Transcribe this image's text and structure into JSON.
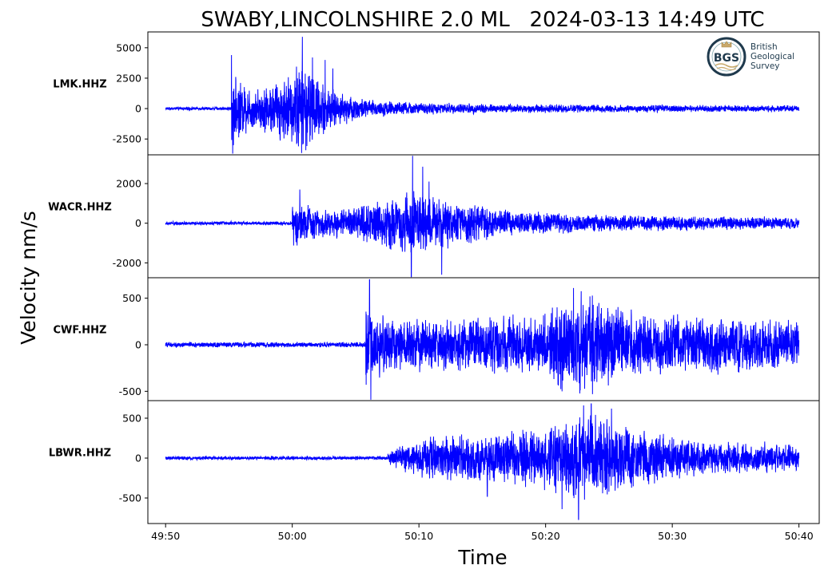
{
  "chart_data": {
    "type": "line",
    "title": "SWABY,LINCOLNSHIRE 2.0 ML   2024-03-13 14:49 UTC",
    "xlabel": "Time",
    "ylabel": "Velocity nm/s",
    "x_ticks": [
      "49:50",
      "50:00",
      "50:10",
      "50:20",
      "50:30",
      "50:40"
    ],
    "xlim_seconds": [
      0,
      50
    ],
    "line_color": "#0000ff",
    "grid": false,
    "legend": "none",
    "panels": [
      {
        "station": "LMK.HHZ",
        "ylim": [
          -3800,
          6300
        ],
        "yticks": [
          5000,
          2500,
          0,
          -2500
        ],
        "ytick_labels": [
          "5000",
          "2500",
          "0",
          "-2500"
        ],
        "onset_s": 5.2,
        "noise_amp": 120,
        "envelope": [
          [
            5.2,
            3800
          ],
          [
            5.5,
            2200
          ],
          [
            7,
            1400
          ],
          [
            8,
            1800
          ],
          [
            10,
            2500
          ],
          [
            10.6,
            3600
          ],
          [
            12,
            2200
          ],
          [
            13.5,
            1200
          ],
          [
            16,
            650
          ],
          [
            20,
            420
          ],
          [
            30,
            300
          ],
          [
            50,
            220
          ]
        ],
        "peaks": [
          [
            5.2,
            4400
          ],
          [
            5.3,
            -3700
          ],
          [
            10.8,
            5900
          ],
          [
            11.6,
            4200
          ],
          [
            12.6,
            4000
          ],
          [
            13.2,
            3300
          ]
        ]
      },
      {
        "station": "WACR.HHZ",
        "ylim": [
          -2750,
          3450
        ],
        "yticks": [
          2000,
          0,
          -2000
        ],
        "ytick_labels": [
          "2000",
          "0",
          "-2000"
        ],
        "onset_s": 10.0,
        "noise_amp": 80,
        "envelope": [
          [
            10,
            1200
          ],
          [
            10.4,
            900
          ],
          [
            12,
            650
          ],
          [
            14,
            600
          ],
          [
            18,
            1200
          ],
          [
            19.5,
            1600
          ],
          [
            21,
            1200
          ],
          [
            24,
            900
          ],
          [
            27,
            600
          ],
          [
            33,
            380
          ],
          [
            50,
            240
          ]
        ],
        "peaks": [
          [
            10.6,
            1700
          ],
          [
            19.5,
            3400
          ],
          [
            20.3,
            2850
          ],
          [
            19.4,
            -2700
          ],
          [
            21.8,
            -2600
          ],
          [
            20.8,
            2100
          ]
        ]
      },
      {
        "station": "CWF.HHZ",
        "ylim": [
          -600,
          720
        ],
        "yticks": [
          500,
          0,
          -500
        ],
        "ytick_labels": [
          "500",
          "0",
          "-500"
        ],
        "onset_s": 15.8,
        "noise_amp": 25,
        "envelope": [
          [
            15.8,
            420
          ],
          [
            16.3,
            280
          ],
          [
            18,
            240
          ],
          [
            24,
            250
          ],
          [
            30,
            300
          ],
          [
            31.5,
            450
          ],
          [
            33,
            480
          ],
          [
            34.5,
            400
          ],
          [
            37,
            300
          ],
          [
            42,
            260
          ],
          [
            50,
            230
          ]
        ],
        "peaks": [
          [
            16.1,
            700
          ],
          [
            16.2,
            -590
          ],
          [
            32.2,
            610
          ],
          [
            33.5,
            520
          ],
          [
            31.3,
            -500
          ],
          [
            33.7,
            -530
          ]
        ]
      },
      {
        "station": "LBWR.HHZ",
        "ylim": [
          -820,
          720
        ],
        "yticks": [
          500,
          0,
          -500
        ],
        "ytick_labels": [
          "500",
          "0",
          "-500"
        ],
        "onset_s": 17.5,
        "noise_amp": 20,
        "envelope": [
          [
            17.5,
            70
          ],
          [
            19,
            150
          ],
          [
            21,
            230
          ],
          [
            26,
            280
          ],
          [
            30,
            330
          ],
          [
            32,
            480
          ],
          [
            33.5,
            540
          ],
          [
            35,
            420
          ],
          [
            38,
            280
          ],
          [
            43,
            180
          ],
          [
            50,
            150
          ]
        ],
        "peaks": [
          [
            33,
            660
          ],
          [
            33.6,
            680
          ],
          [
            35.2,
            620
          ],
          [
            32.6,
            -770
          ],
          [
            31.3,
            -640
          ],
          [
            25.4,
            -480
          ]
        ]
      }
    ]
  },
  "logo": {
    "initials": "BGS",
    "line1": "British",
    "line2": "Geological",
    "line3": "Survey"
  }
}
